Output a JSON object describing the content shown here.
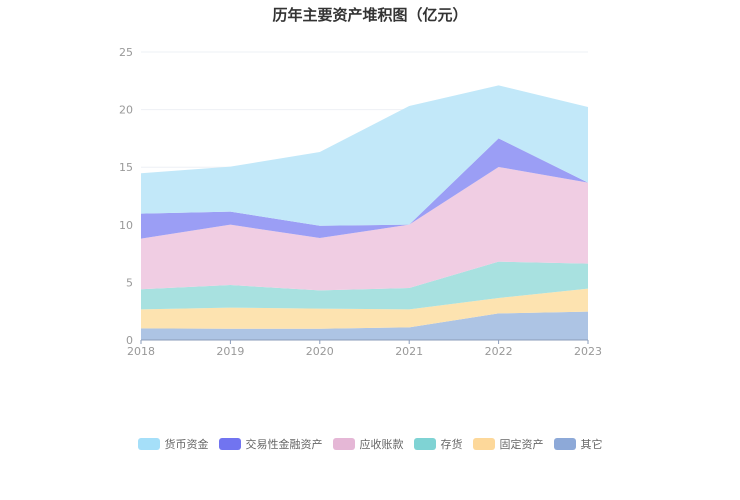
{
  "chart_data": {
    "type": "area",
    "stacked": true,
    "title": "历年主要资产堆积图（亿元）",
    "xlabel": "",
    "ylabel": "",
    "categories": [
      "2018",
      "2019",
      "2020",
      "2021",
      "2022",
      "2023"
    ],
    "ylim": [
      0,
      25
    ],
    "yticks": [
      "0",
      "5",
      "10",
      "15",
      "20",
      "25"
    ],
    "grid": true,
    "legend_position": "bottom",
    "series": [
      {
        "name": "其它",
        "fill": "#adc4e4",
        "legend_color": "#8da9d8",
        "values": [
          1.01,
          0.98,
          0.98,
          1.1,
          2.31,
          2.46
        ]
      },
      {
        "name": "固定资产",
        "fill": "#fde3b0",
        "legend_color": "#fdd89a",
        "values": [
          1.65,
          1.83,
          1.74,
          1.56,
          1.34,
          2.0
        ]
      },
      {
        "name": "存货",
        "fill": "#a8e1e0",
        "legend_color": "#7fd3d4",
        "values": [
          1.74,
          1.96,
          1.59,
          1.85,
          3.15,
          2.17
        ]
      },
      {
        "name": "应收账款",
        "fill": "#f0cde3",
        "legend_color": "#e5b7d6",
        "values": [
          4.4,
          5.24,
          4.54,
          5.5,
          8.22,
          7.03
        ]
      },
      {
        "name": "交易性金融资产",
        "fill": "#9b9ef5",
        "legend_color": "#7174f0",
        "values": [
          2.17,
          1.13,
          1.07,
          0,
          2.48,
          0
        ]
      },
      {
        "name": "货币资金",
        "fill": "#c2e8f9",
        "legend_color": "#a5dff9",
        "values": [
          3.5,
          3.91,
          6.4,
          10.3,
          4.6,
          6.57
        ]
      }
    ],
    "legend_order": [
      "货币资金",
      "交易性金融资产",
      "应收账款",
      "存货",
      "固定资产",
      "其它"
    ]
  }
}
